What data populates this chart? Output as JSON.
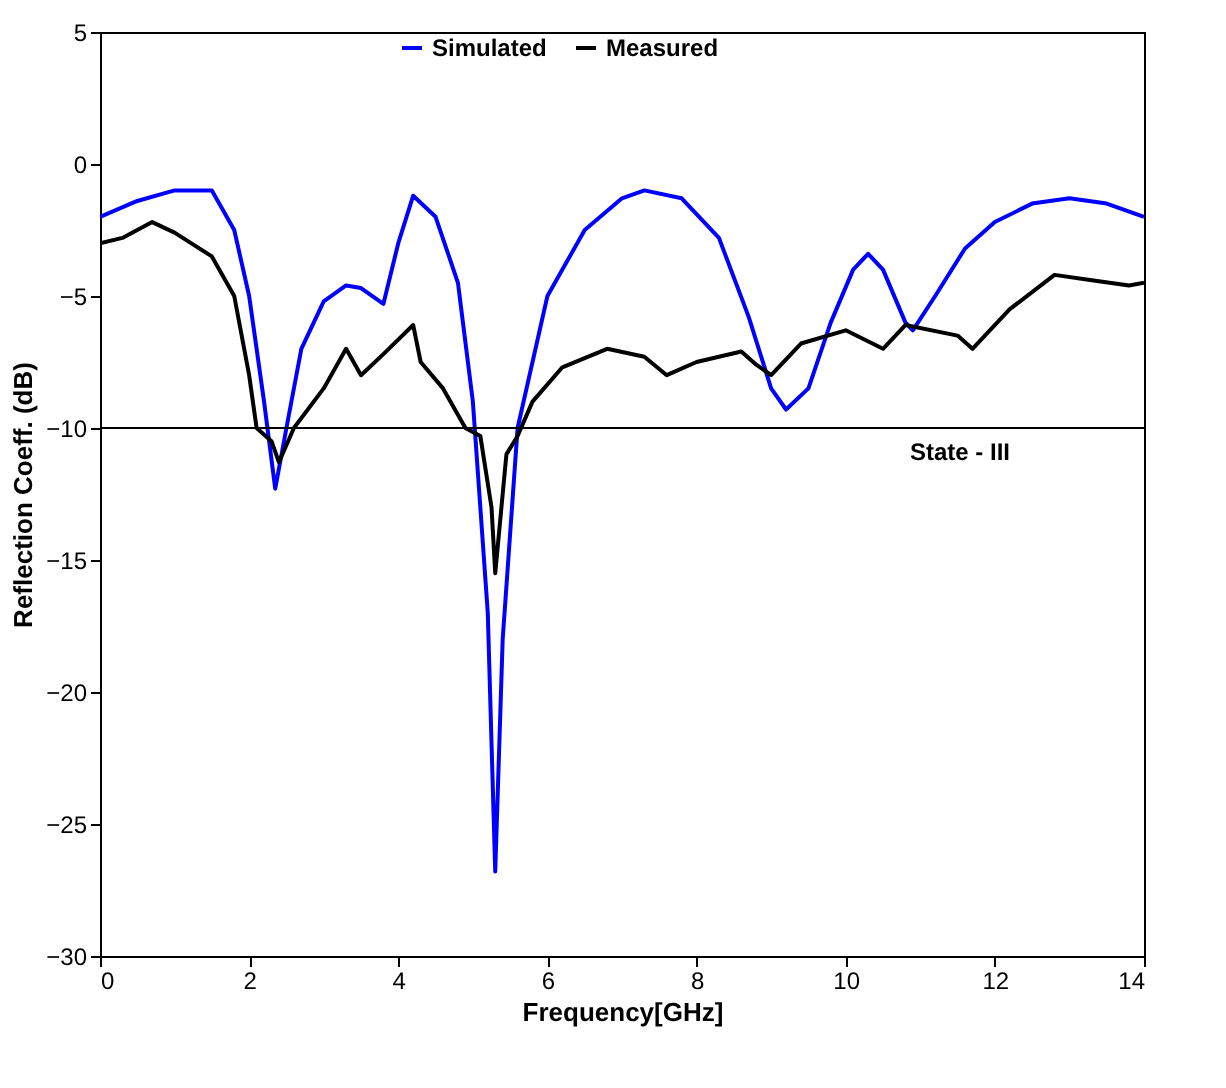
{
  "chart_data": {
    "type": "line",
    "xlabel": "Frequency[GHz]",
    "ylabel": "Reflection Coeff. (dB)",
    "xlim": [
      0,
      14
    ],
    "xticks": [
      0,
      2,
      4,
      6,
      8,
      10,
      12,
      14
    ],
    "ylim": [
      -30,
      5
    ],
    "yticks": [
      -30,
      -25,
      -20,
      -15,
      -10,
      -5,
      0,
      5
    ],
    "grid": false,
    "legend": "top",
    "marker": "none",
    "line_style": "solid",
    "series": [
      {
        "name": "Simulated",
        "color": "#0000ff",
        "x": [
          0,
          0.5,
          1,
          1.5,
          1.8,
          2.0,
          2.2,
          2.35,
          2.5,
          2.7,
          3.0,
          3.3,
          3.5,
          3.8,
          4.0,
          4.2,
          4.5,
          4.8,
          5.0,
          5.2,
          5.3,
          5.4,
          5.6,
          6.0,
          6.5,
          7.0,
          7.3,
          7.8,
          8.3,
          8.7,
          9.0,
          9.2,
          9.5,
          9.8,
          10.1,
          10.3,
          10.5,
          10.8,
          10.9,
          11.2,
          11.6,
          12.0,
          12.5,
          13.0,
          13.5,
          14.0
        ],
        "values": [
          -2.0,
          -1.4,
          -1.0,
          -1.0,
          -2.5,
          -5,
          -9,
          -12.3,
          -10,
          -7,
          -5.2,
          -4.6,
          -4.7,
          -5.3,
          -3,
          -1.2,
          -2,
          -4.5,
          -9,
          -17,
          -26.8,
          -18,
          -10,
          -5,
          -2.5,
          -1.3,
          -1,
          -1.3,
          -2.8,
          -5.8,
          -8.5,
          -9.3,
          -8.5,
          -6,
          -4,
          -3.4,
          -4,
          -6,
          -6.3,
          -5,
          -3.2,
          -2.2,
          -1.5,
          -1.3,
          -1.5,
          -2.0
        ]
      },
      {
        "name": "Measured",
        "color": "#000000",
        "x": [
          0,
          0.3,
          0.7,
          1.0,
          1.5,
          1.8,
          2.0,
          2.1,
          2.3,
          2.4,
          2.6,
          3.0,
          3.3,
          3.5,
          3.8,
          4.2,
          4.3,
          4.6,
          4.9,
          5.1,
          5.25,
          5.3,
          5.45,
          5.6,
          5.8,
          6.2,
          6.8,
          7.3,
          7.6,
          8.0,
          8.6,
          8.8,
          9.0,
          9.4,
          10.0,
          10.5,
          10.8,
          11.5,
          11.7,
          12.2,
          12.8,
          13.3,
          13.8,
          14.0
        ],
        "values": [
          -3,
          -2.8,
          -2.2,
          -2.6,
          -3.5,
          -5,
          -8,
          -10,
          -10.5,
          -11.3,
          -10,
          -8.5,
          -7,
          -8,
          -7.2,
          -6.1,
          -7.5,
          -8.5,
          -10,
          -10.3,
          -13,
          -15.5,
          -11,
          -10.3,
          -9,
          -7.7,
          -7,
          -7.3,
          -8,
          -7.5,
          -7.1,
          -7.6,
          -8,
          -6.8,
          -6.3,
          -7,
          -6.1,
          -6.5,
          -7,
          -5.5,
          -4.2,
          -4.4,
          -4.6,
          -4.5
        ]
      }
    ],
    "ref_lines": [
      {
        "axis": "y",
        "value": -10,
        "color": "#000000"
      }
    ],
    "annotations": [
      "State - III"
    ]
  }
}
